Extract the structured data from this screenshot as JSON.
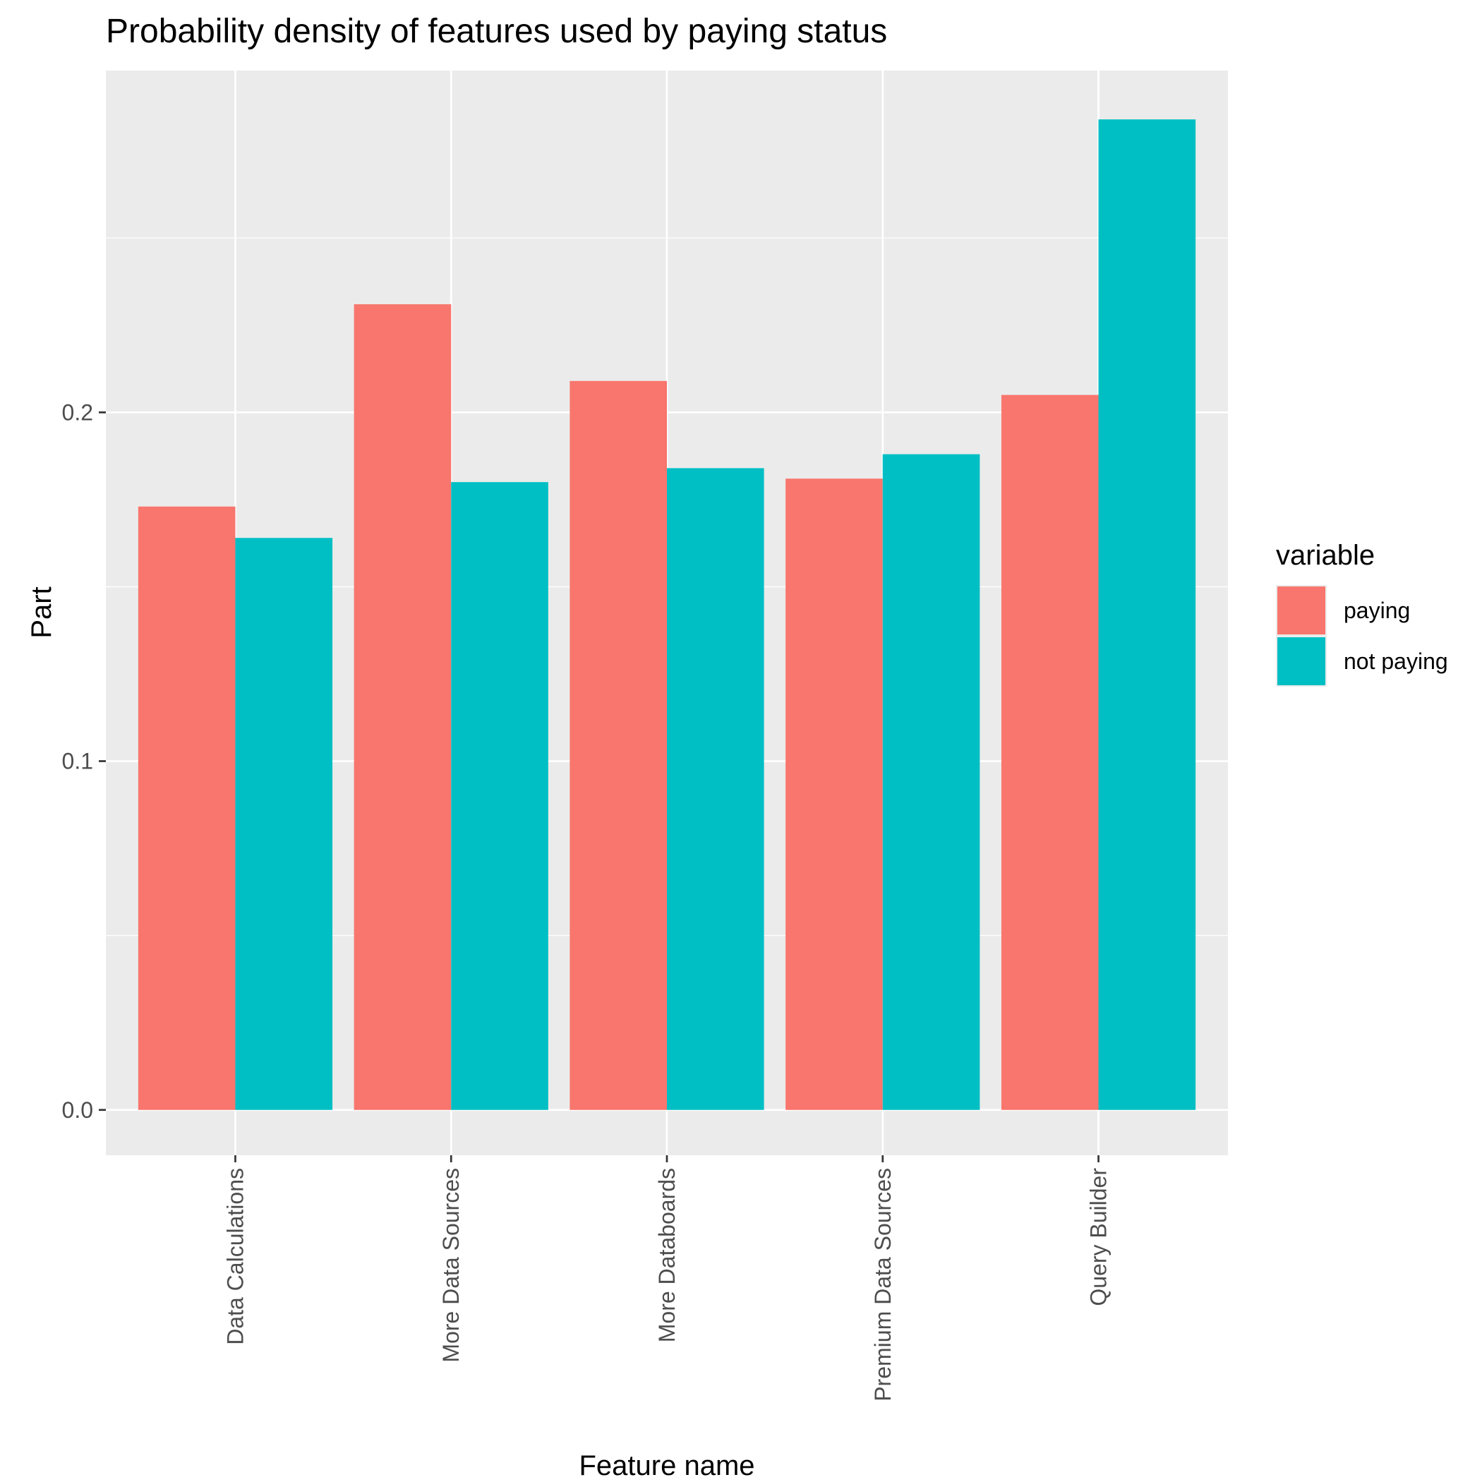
{
  "chart_data": {
    "type": "bar",
    "title": "Probability density of features used by paying status",
    "xlabel": "Feature name",
    "ylabel": "Part",
    "categories": [
      "Data Calculations",
      "More Data Sources",
      "More Databoards",
      "Premium Data Sources",
      "Query Builder"
    ],
    "series": [
      {
        "name": "paying",
        "values": [
          0.173,
          0.231,
          0.209,
          0.181,
          0.205
        ]
      },
      {
        "name": "not paying",
        "values": [
          0.164,
          0.18,
          0.184,
          0.188,
          0.284
        ]
      }
    ],
    "ylim": [
      -0.013,
      0.298
    ],
    "yticks": [
      0.0,
      0.1,
      0.2
    ],
    "ytick_labels": [
      "0.0",
      "0.1",
      "0.2"
    ],
    "legend_title": "variable",
    "legend_position": "right",
    "grid": true,
    "colors": {
      "panel_background": "#EBEBEB",
      "grid": "#FFFFFF",
      "series": [
        "#F8766D",
        "#00BFC4"
      ],
      "tick_text": "#4D4D4D",
      "tick_mark": "#333333"
    }
  }
}
